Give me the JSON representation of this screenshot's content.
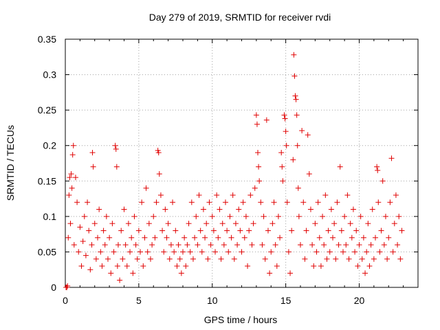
{
  "chart_data": {
    "type": "scatter",
    "title": "Day 279 of 2019, SRMTID for receiver rvdi",
    "xlabel": "GPS time / hours",
    "ylabel": "SRMTID / TECUs",
    "xlim": [
      0,
      24
    ],
    "ylim": [
      0,
      0.35
    ],
    "xticks": [
      0,
      5,
      10,
      15,
      20
    ],
    "yticks": [
      0,
      0.05,
      0.1,
      0.15,
      0.2,
      0.25,
      0.3,
      0.35
    ],
    "xtick_labels": [
      "0",
      "5",
      "10",
      "15",
      "20"
    ],
    "ytick_labels": [
      "0",
      "0.05",
      "0.1",
      "0.15",
      "0.2",
      "0.25",
      "0.3",
      "0.35"
    ],
    "grid": true,
    "legend": "none",
    "marker": "+",
    "color": "#e00000",
    "series": [
      {
        "points": [
          [
            0.05,
            0.0
          ],
          [
            0.1,
            0.0
          ],
          [
            0.15,
            0.002
          ],
          [
            0.2,
            0.07
          ],
          [
            0.25,
            0.13
          ],
          [
            0.3,
            0.155
          ],
          [
            0.35,
            0.09
          ],
          [
            0.4,
            0.16
          ],
          [
            0.45,
            0.14
          ],
          [
            0.5,
            0.187
          ],
          [
            0.55,
            0.2
          ],
          [
            0.6,
            0.06
          ],
          [
            0.7,
            0.155
          ],
          [
            0.8,
            0.12
          ],
          [
            0.9,
            0.05
          ],
          [
            1.0,
            0.085
          ],
          [
            1.1,
            0.03
          ],
          [
            1.2,
            0.065
          ],
          [
            1.3,
            0.1
          ],
          [
            1.4,
            0.045
          ],
          [
            1.5,
            0.12
          ],
          [
            1.6,
            0.08
          ],
          [
            1.7,
            0.025
          ],
          [
            1.8,
            0.06
          ],
          [
            1.85,
            0.19
          ],
          [
            1.9,
            0.17
          ],
          [
            2.0,
            0.09
          ],
          [
            2.1,
            0.04
          ],
          [
            2.2,
            0.07
          ],
          [
            2.3,
            0.11
          ],
          [
            2.4,
            0.05
          ],
          [
            2.5,
            0.03
          ],
          [
            2.6,
            0.08
          ],
          [
            2.7,
            0.06
          ],
          [
            2.8,
            0.1
          ],
          [
            2.9,
            0.04
          ],
          [
            3.0,
            0.07
          ],
          [
            3.1,
            0.02
          ],
          [
            3.2,
            0.09
          ],
          [
            3.3,
            0.05
          ],
          [
            3.4,
            0.2
          ],
          [
            3.45,
            0.195
          ],
          [
            3.5,
            0.17
          ],
          [
            3.55,
            0.03
          ],
          [
            3.6,
            0.06
          ],
          [
            3.7,
            0.01
          ],
          [
            3.8,
            0.08
          ],
          [
            3.9,
            0.04
          ],
          [
            4.0,
            0.11
          ],
          [
            4.1,
            0.06
          ],
          [
            4.2,
            0.03
          ],
          [
            4.3,
            0.09
          ],
          [
            4.4,
            0.05
          ],
          [
            4.5,
            0.07
          ],
          [
            4.6,
            0.02
          ],
          [
            4.7,
            0.1
          ],
          [
            4.8,
            0.06
          ],
          [
            4.9,
            0.04
          ],
          [
            5.0,
            0.08
          ],
          [
            5.1,
            0.05
          ],
          [
            5.2,
            0.12
          ],
          [
            5.3,
            0.03
          ],
          [
            5.4,
            0.07
          ],
          [
            5.5,
            0.14
          ],
          [
            5.6,
            0.05
          ],
          [
            5.7,
            0.09
          ],
          [
            5.8,
            0.04
          ],
          [
            5.9,
            0.06
          ],
          [
            6.0,
            0.1
          ],
          [
            6.1,
            0.07
          ],
          [
            6.2,
            0.12
          ],
          [
            6.3,
            0.193
          ],
          [
            6.35,
            0.19
          ],
          [
            6.4,
            0.16
          ],
          [
            6.5,
            0.13
          ],
          [
            6.6,
            0.08
          ],
          [
            6.7,
            0.05
          ],
          [
            6.8,
            0.11
          ],
          [
            6.9,
            0.07
          ],
          [
            7.0,
            0.09
          ],
          [
            7.1,
            0.04
          ],
          [
            7.2,
            0.06
          ],
          [
            7.3,
            0.12
          ],
          [
            7.4,
            0.05
          ],
          [
            7.5,
            0.08
          ],
          [
            7.6,
            0.03
          ],
          [
            7.7,
            0.06
          ],
          [
            7.8,
            0.04
          ],
          [
            7.9,
            0.02
          ],
          [
            8.0,
            0.05
          ],
          [
            8.1,
            0.07
          ],
          [
            8.2,
            0.03
          ],
          [
            8.3,
            0.06
          ],
          [
            8.4,
            0.09
          ],
          [
            8.5,
            0.05
          ],
          [
            8.6,
            0.12
          ],
          [
            8.7,
            0.04
          ],
          [
            8.8,
            0.07
          ],
          [
            8.9,
            0.1
          ],
          [
            9.0,
            0.06
          ],
          [
            9.1,
            0.13
          ],
          [
            9.2,
            0.08
          ],
          [
            9.3,
            0.05
          ],
          [
            9.4,
            0.11
          ],
          [
            9.5,
            0.07
          ],
          [
            9.6,
            0.09
          ],
          [
            9.7,
            0.04
          ],
          [
            9.8,
            0.12
          ],
          [
            9.9,
            0.06
          ],
          [
            10.0,
            0.1
          ],
          [
            10.1,
            0.08
          ],
          [
            10.2,
            0.05
          ],
          [
            10.3,
            0.13
          ],
          [
            10.4,
            0.07
          ],
          [
            10.5,
            0.11
          ],
          [
            10.6,
            0.04
          ],
          [
            10.7,
            0.09
          ],
          [
            10.8,
            0.06
          ],
          [
            10.9,
            0.12
          ],
          [
            11.0,
            0.08
          ],
          [
            11.1,
            0.05
          ],
          [
            11.2,
            0.1
          ],
          [
            11.3,
            0.07
          ],
          [
            11.4,
            0.13
          ],
          [
            11.5,
            0.04
          ],
          [
            11.6,
            0.09
          ],
          [
            11.7,
            0.06
          ],
          [
            11.8,
            0.11
          ],
          [
            11.9,
            0.08
          ],
          [
            12.0,
            0.05
          ],
          [
            12.1,
            0.12
          ],
          [
            12.2,
            0.07
          ],
          [
            12.3,
            0.1
          ],
          [
            12.4,
            0.03
          ],
          [
            12.5,
            0.08
          ],
          [
            12.6,
            0.13
          ],
          [
            12.7,
            0.06
          ],
          [
            12.8,
            0.09
          ],
          [
            12.9,
            0.14
          ],
          [
            13.0,
            0.243
          ],
          [
            13.05,
            0.23
          ],
          [
            13.1,
            0.19
          ],
          [
            13.15,
            0.17
          ],
          [
            13.2,
            0.15
          ],
          [
            13.3,
            0.12
          ],
          [
            13.4,
            0.06
          ],
          [
            13.5,
            0.1
          ],
          [
            13.6,
            0.04
          ],
          [
            13.7,
            0.236
          ],
          [
            13.8,
            0.08
          ],
          [
            13.9,
            0.02
          ],
          [
            14.0,
            0.05
          ],
          [
            14.1,
            0.09
          ],
          [
            14.2,
            0.12
          ],
          [
            14.3,
            0.06
          ],
          [
            14.4,
            0.03
          ],
          [
            14.5,
            0.1
          ],
          [
            14.6,
            0.07
          ],
          [
            14.7,
            0.19
          ],
          [
            14.75,
            0.17
          ],
          [
            14.8,
            0.15
          ],
          [
            14.9,
            0.243
          ],
          [
            14.95,
            0.238
          ],
          [
            15.0,
            0.22
          ],
          [
            15.05,
            0.2
          ],
          [
            15.1,
            0.12
          ],
          [
            15.2,
            0.05
          ],
          [
            15.3,
            0.02
          ],
          [
            15.4,
            0.08
          ],
          [
            15.5,
            0.18
          ],
          [
            15.55,
            0.328
          ],
          [
            15.6,
            0.298
          ],
          [
            15.65,
            0.27
          ],
          [
            15.7,
            0.265
          ],
          [
            15.75,
            0.243
          ],
          [
            15.8,
            0.2
          ],
          [
            15.85,
            0.14
          ],
          [
            15.9,
            0.1
          ],
          [
            16.0,
            0.06
          ],
          [
            16.1,
            0.221
          ],
          [
            16.2,
            0.12
          ],
          [
            16.3,
            0.04
          ],
          [
            16.4,
            0.08
          ],
          [
            16.5,
            0.215
          ],
          [
            16.6,
            0.16
          ],
          [
            16.7,
            0.11
          ],
          [
            16.8,
            0.06
          ],
          [
            16.9,
            0.03
          ],
          [
            17.0,
            0.09
          ],
          [
            17.1,
            0.05
          ],
          [
            17.2,
            0.12
          ],
          [
            17.3,
            0.07
          ],
          [
            17.4,
            0.03
          ],
          [
            17.5,
            0.1
          ],
          [
            17.6,
            0.06
          ],
          [
            17.7,
            0.13
          ],
          [
            17.8,
            0.04
          ],
          [
            17.9,
            0.08
          ],
          [
            18.0,
            0.05
          ],
          [
            18.1,
            0.11
          ],
          [
            18.2,
            0.07
          ],
          [
            18.3,
            0.09
          ],
          [
            18.4,
            0.04
          ],
          [
            18.5,
            0.12
          ],
          [
            18.6,
            0.06
          ],
          [
            18.7,
            0.17
          ],
          [
            18.8,
            0.08
          ],
          [
            18.9,
            0.05
          ],
          [
            19.0,
            0.1
          ],
          [
            19.1,
            0.06
          ],
          [
            19.2,
            0.13
          ],
          [
            19.3,
            0.04
          ],
          [
            19.4,
            0.09
          ],
          [
            19.5,
            0.07
          ],
          [
            19.6,
            0.11
          ],
          [
            19.7,
            0.05
          ],
          [
            19.8,
            0.08
          ],
          [
            19.9,
            0.03
          ],
          [
            20.0,
            0.06
          ],
          [
            20.1,
            0.1
          ],
          [
            20.2,
            0.04
          ],
          [
            20.3,
            0.07
          ],
          [
            20.4,
            0.02
          ],
          [
            20.5,
            0.05
          ],
          [
            20.6,
            0.09
          ],
          [
            20.7,
            0.03
          ],
          [
            20.8,
            0.06
          ],
          [
            20.9,
            0.11
          ],
          [
            21.0,
            0.04
          ],
          [
            21.1,
            0.07
          ],
          [
            21.2,
            0.17
          ],
          [
            21.25,
            0.165
          ],
          [
            21.3,
            0.12
          ],
          [
            21.4,
            0.05
          ],
          [
            21.5,
            0.08
          ],
          [
            21.6,
            0.15
          ],
          [
            21.7,
            0.06
          ],
          [
            21.8,
            0.1
          ],
          [
            21.9,
            0.04
          ],
          [
            22.0,
            0.07
          ],
          [
            22.1,
            0.12
          ],
          [
            22.2,
            0.182
          ],
          [
            22.3,
            0.05
          ],
          [
            22.4,
            0.09
          ],
          [
            22.5,
            0.13
          ],
          [
            22.6,
            0.06
          ],
          [
            22.7,
            0.1
          ],
          [
            22.8,
            0.04
          ],
          [
            22.9,
            0.08
          ]
        ]
      }
    ]
  }
}
